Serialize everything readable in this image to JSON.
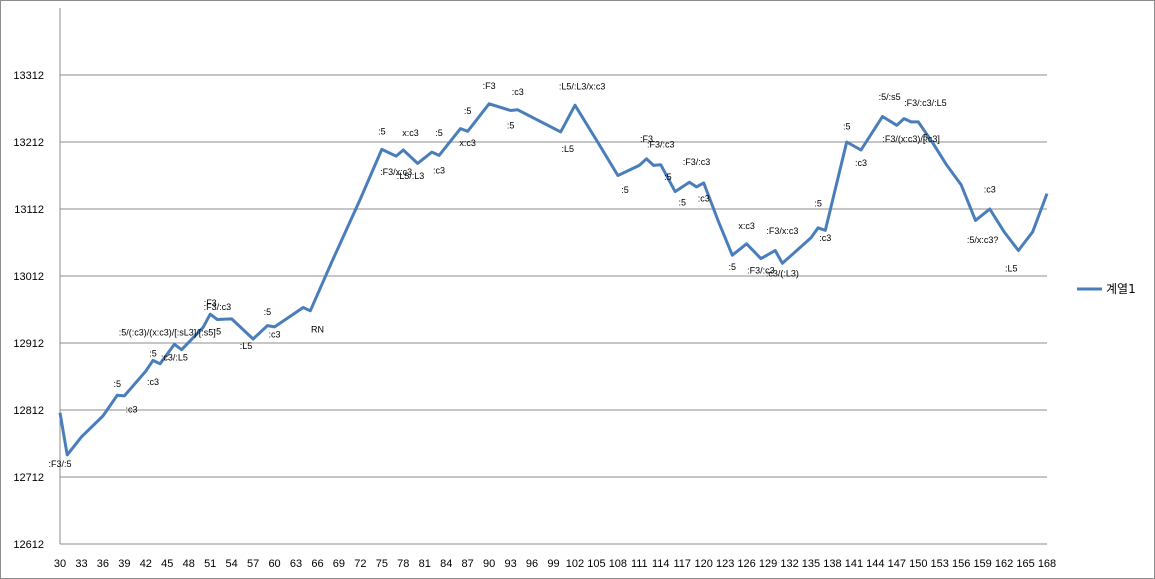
{
  "chart_data": {
    "type": "line",
    "title": "",
    "xlabel": "",
    "ylabel": "",
    "ylim": [
      12612,
      13412
    ],
    "y_ticks": [
      12612,
      12712,
      12812,
      12912,
      13012,
      13112,
      13212,
      13312
    ],
    "x_ticks": [
      30,
      33,
      36,
      39,
      42,
      45,
      48,
      51,
      54,
      57,
      60,
      63,
      66,
      69,
      72,
      75,
      78,
      81,
      84,
      87,
      90,
      93,
      96,
      99,
      102,
      105,
      108,
      111,
      114,
      117,
      120,
      123,
      126,
      129,
      132,
      135,
      138,
      141,
      144,
      147,
      150,
      153,
      156,
      159,
      162,
      165,
      168
    ],
    "xlim": [
      30,
      168
    ],
    "grid": "horizontal",
    "legend_position": "right",
    "series_color": "#4a7ebb",
    "series": [
      {
        "name": "계열1",
        "points": [
          [
            30,
            12808
          ],
          [
            31,
            12745
          ],
          [
            33,
            12772
          ],
          [
            36,
            12803
          ],
          [
            38,
            12834
          ],
          [
            39,
            12833
          ],
          [
            42,
            12870
          ],
          [
            43,
            12886
          ],
          [
            44,
            12881
          ],
          [
            46,
            12910
          ],
          [
            47,
            12902
          ],
          [
            50,
            12935
          ],
          [
            51,
            12955
          ],
          [
            52,
            12947
          ],
          [
            54,
            12948
          ],
          [
            57,
            12918
          ],
          [
            59,
            12938
          ],
          [
            60,
            12936
          ],
          [
            64,
            12965
          ],
          [
            65,
            12960
          ],
          [
            68,
            13033
          ],
          [
            72,
            13127
          ],
          [
            75,
            13201
          ],
          [
            77,
            13191
          ],
          [
            78,
            13200
          ],
          [
            80,
            13180
          ],
          [
            82,
            13197
          ],
          [
            83,
            13192
          ],
          [
            86,
            13232
          ],
          [
            87,
            13228
          ],
          [
            90,
            13269
          ],
          [
            93,
            13259
          ],
          [
            94,
            13260
          ],
          [
            96,
            13249
          ],
          [
            100,
            13227
          ],
          [
            102,
            13267
          ],
          [
            105,
            13215
          ],
          [
            108,
            13162
          ],
          [
            111,
            13177
          ],
          [
            112,
            13187
          ],
          [
            113,
            13177
          ],
          [
            114,
            13178
          ],
          [
            116,
            13138
          ],
          [
            118,
            13152
          ],
          [
            119,
            13145
          ],
          [
            120,
            13151
          ],
          [
            122,
            13095
          ],
          [
            124,
            13043
          ],
          [
            126,
            13060
          ],
          [
            128,
            13038
          ],
          [
            130,
            13050
          ],
          [
            131,
            13031
          ],
          [
            135,
            13069
          ],
          [
            136,
            13084
          ],
          [
            137,
            13080
          ],
          [
            140,
            13212
          ],
          [
            142,
            13200
          ],
          [
            145,
            13250
          ],
          [
            147,
            13237
          ],
          [
            148,
            13247
          ],
          [
            149,
            13242
          ],
          [
            150,
            13242
          ],
          [
            152,
            13211
          ],
          [
            154,
            13177
          ],
          [
            156,
            13148
          ],
          [
            158,
            13095
          ],
          [
            160,
            13112
          ],
          [
            162,
            13078
          ],
          [
            164,
            13050
          ],
          [
            166,
            13078
          ],
          [
            168,
            13135
          ]
        ]
      }
    ],
    "annotations": [
      {
        "x": 30,
        "y": 12727,
        "text": ":F3/:5"
      },
      {
        "x": 38,
        "y": 12846,
        "text": ":5"
      },
      {
        "x": 40,
        "y": 12808,
        "text": ":c3"
      },
      {
        "x": 43,
        "y": 12892,
        "text": ":5"
      },
      {
        "x": 43,
        "y": 12849,
        "text": ":c3"
      },
      {
        "x": 45,
        "y": 12923,
        "text": ":5/(:c3)/(x:c3)/[:sL3]/[:s5]"
      },
      {
        "x": 46,
        "y": 12886,
        "text": ":c3/:L5"
      },
      {
        "x": 51,
        "y": 12967,
        "text": ":F3"
      },
      {
        "x": 52,
        "y": 12961,
        "text": ":F3/:c3"
      },
      {
        "x": 52,
        "y": 12925,
        "text": ":5"
      },
      {
        "x": 56,
        "y": 12903,
        "text": ":L5"
      },
      {
        "x": 59,
        "y": 12954,
        "text": ":5"
      },
      {
        "x": 60,
        "y": 12920,
        "text": ":c3"
      },
      {
        "x": 66,
        "y": 12928,
        "text": "RN"
      },
      {
        "x": 75,
        "y": 13223,
        "text": ":5"
      },
      {
        "x": 77,
        "y": 13163,
        "text": ":F3/x:c3"
      },
      {
        "x": 79,
        "y": 13221,
        "text": "x:c3"
      },
      {
        "x": 79,
        "y": 13157,
        "text": ":L5/:L3"
      },
      {
        "x": 83,
        "y": 13221,
        "text": ":5"
      },
      {
        "x": 83,
        "y": 13165,
        "text": ":c3"
      },
      {
        "x": 87,
        "y": 13254,
        "text": ":5"
      },
      {
        "x": 87,
        "y": 13206,
        "text": "x:c3"
      },
      {
        "x": 90,
        "y": 13291,
        "text": ":F3"
      },
      {
        "x": 94,
        "y": 13282,
        "text": ":c3"
      },
      {
        "x": 93,
        "y": 13232,
        "text": ":5"
      },
      {
        "x": 103,
        "y": 13290,
        "text": ":L5/:L3/x:c3"
      },
      {
        "x": 101,
        "y": 13197,
        "text": ":L5"
      },
      {
        "x": 112,
        "y": 13212,
        "text": ":F3"
      },
      {
        "x": 114,
        "y": 13204,
        "text": ":F3/:c3"
      },
      {
        "x": 109,
        "y": 13136,
        "text": ":5"
      },
      {
        "x": 115,
        "y": 13155,
        "text": ":5"
      },
      {
        "x": 119,
        "y": 13178,
        "text": ":F3/:c3"
      },
      {
        "x": 117,
        "y": 13117,
        "text": ":5"
      },
      {
        "x": 120,
        "y": 13123,
        "text": ":c3"
      },
      {
        "x": 126,
        "y": 13082,
        "text": "x:c3"
      },
      {
        "x": 131,
        "y": 13075,
        "text": ":F3/x:c3"
      },
      {
        "x": 124,
        "y": 13021,
        "text": ":5"
      },
      {
        "x": 128,
        "y": 13016,
        "text": ":F3/:c3"
      },
      {
        "x": 131,
        "y": 13011,
        "text": ":c3/(:L3)"
      },
      {
        "x": 136,
        "y": 13116,
        "text": ":5"
      },
      {
        "x": 137,
        "y": 13064,
        "text": ":c3"
      },
      {
        "x": 140,
        "y": 13231,
        "text": ":5"
      },
      {
        "x": 142,
        "y": 13176,
        "text": ":c3"
      },
      {
        "x": 146,
        "y": 13275,
        "text": ":5/:s5"
      },
      {
        "x": 151,
        "y": 13266,
        "text": ":F3/:c3/:L5"
      },
      {
        "x": 149,
        "y": 13212,
        "text": ":F3/(x:c3)/[:c3]"
      },
      {
        "x": 151,
        "y": 13214,
        "text": "5"
      },
      {
        "x": 160,
        "y": 13137,
        "text": ":c3"
      },
      {
        "x": 159,
        "y": 13061,
        "text": ":5/x:c3?"
      },
      {
        "x": 163,
        "y": 13019,
        "text": ":L5"
      }
    ]
  }
}
